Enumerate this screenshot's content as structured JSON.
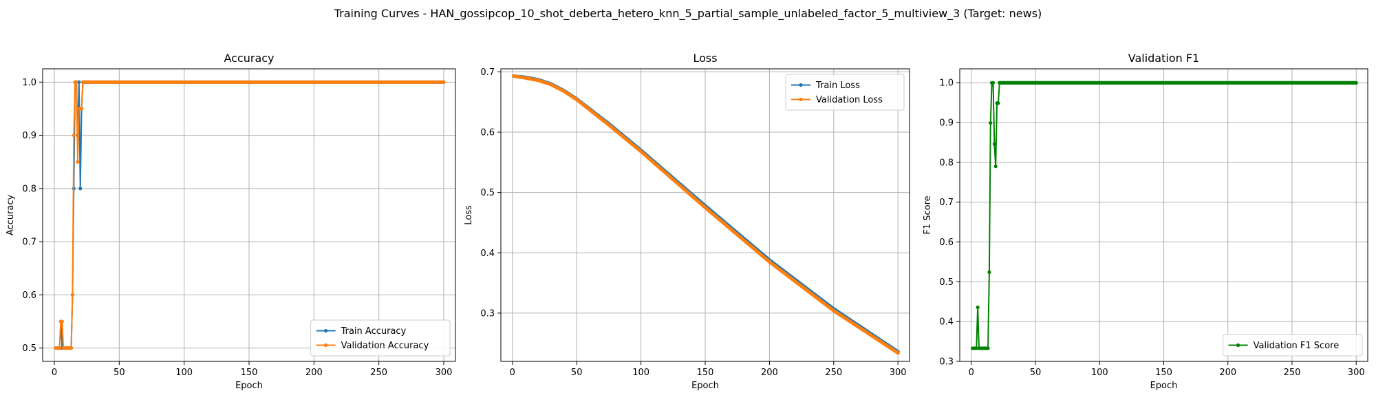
{
  "suptitle": "Training Curves - HAN_gossipcop_10_shot_deberta_hetero_knn_5_partial_sample_unlabeled_factor_5_multiview_3 (Target: news)",
  "colors": {
    "train": "#1f77b4",
    "val": "#ff7f0e",
    "f1": "#008000",
    "grid": "#b0b0b0"
  },
  "chart_data": [
    {
      "type": "line",
      "title": "Accuracy",
      "xlabel": "Epoch",
      "ylabel": "Accuracy",
      "xlim": [
        -9,
        309
      ],
      "ylim": [
        0.475,
        1.025
      ],
      "xticks": [
        0,
        50,
        100,
        150,
        200,
        250,
        300
      ],
      "yticks": [
        0.5,
        0.6,
        0.7,
        0.8,
        0.9,
        1.0
      ],
      "ytick_labels": [
        "0.5",
        "0.6",
        "0.7",
        "0.8",
        "0.9",
        "1.0"
      ],
      "legend_loc": "lower-right",
      "x_range": [
        1,
        300
      ],
      "series": [
        {
          "name": "Train Accuracy",
          "color_key": "train",
          "values_head": [
            0.5,
            0.5,
            0.5,
            0.5,
            0.55,
            0.5,
            0.5,
            0.5,
            0.5,
            0.5,
            0.5,
            0.5,
            0.5,
            0.6,
            0.8,
            1.0,
            1.0,
            0.9,
            1.0,
            0.8,
            0.95,
            1.0,
            1.0,
            1.0,
            1.0
          ],
          "tail_value": 1.0
        },
        {
          "name": "Validation Accuracy",
          "color_key": "val",
          "values_head": [
            0.5,
            0.5,
            0.5,
            0.5,
            0.55,
            0.55,
            0.5,
            0.5,
            0.5,
            0.5,
            0.5,
            0.5,
            0.5,
            0.6,
            0.9,
            1.0,
            1.0,
            0.85,
            0.95,
            0.95,
            0.95,
            1.0,
            1.0,
            1.0,
            1.0
          ],
          "tail_value": 1.0
        }
      ]
    },
    {
      "type": "line",
      "title": "Loss",
      "xlabel": "Epoch",
      "ylabel": "Loss",
      "xlim": [
        -9,
        309
      ],
      "ylim": [
        0.22,
        0.705
      ],
      "xticks": [
        0,
        50,
        100,
        150,
        200,
        250,
        300
      ],
      "yticks": [
        0.3,
        0.4,
        0.5,
        0.6,
        0.7
      ],
      "ytick_labels": [
        "0.3",
        "0.4",
        "0.5",
        "0.6",
        "0.7"
      ],
      "legend_loc": "top-right",
      "x_range": [
        1,
        300
      ],
      "series": [
        {
          "name": "Train Loss",
          "color_key": "train",
          "anchors_x": [
            1,
            10,
            20,
            30,
            40,
            50,
            75,
            100,
            150,
            200,
            250,
            300
          ],
          "anchors_y": [
            0.693,
            0.691,
            0.687,
            0.68,
            0.669,
            0.655,
            0.614,
            0.57,
            0.478,
            0.388,
            0.307,
            0.236
          ]
        },
        {
          "name": "Validation Loss",
          "color_key": "val",
          "anchors_x": [
            1,
            10,
            20,
            30,
            40,
            50,
            75,
            100,
            150,
            200,
            250,
            300
          ],
          "anchors_y": [
            0.693,
            0.69,
            0.686,
            0.679,
            0.668,
            0.654,
            0.612,
            0.568,
            0.475,
            0.385,
            0.304,
            0.234
          ]
        }
      ]
    },
    {
      "type": "line",
      "title": "Validation F1",
      "xlabel": "Epoch",
      "ylabel": "F1 Score",
      "xlim": [
        -9,
        309
      ],
      "ylim": [
        0.3,
        1.035
      ],
      "xticks": [
        0,
        50,
        100,
        150,
        200,
        250,
        300
      ],
      "yticks": [
        0.3,
        0.4,
        0.5,
        0.6,
        0.7,
        0.8,
        0.9,
        1.0
      ],
      "ytick_labels": [
        "0.3",
        "0.4",
        "0.5",
        "0.6",
        "0.7",
        "0.8",
        "0.9",
        "1.0"
      ],
      "legend_loc": "lower-right",
      "x_range": [
        1,
        300
      ],
      "series": [
        {
          "name": "Validation F1 Score",
          "color_key": "f1",
          "values_head": [
            0.333,
            0.333,
            0.333,
            0.333,
            0.436,
            0.333,
            0.333,
            0.333,
            0.333,
            0.333,
            0.333,
            0.333,
            0.333,
            0.524,
            0.899,
            1.0,
            1.0,
            0.846,
            0.79,
            0.949,
            0.949,
            1.0,
            1.0,
            1.0,
            1.0
          ],
          "tail_value": 1.0
        }
      ]
    }
  ]
}
